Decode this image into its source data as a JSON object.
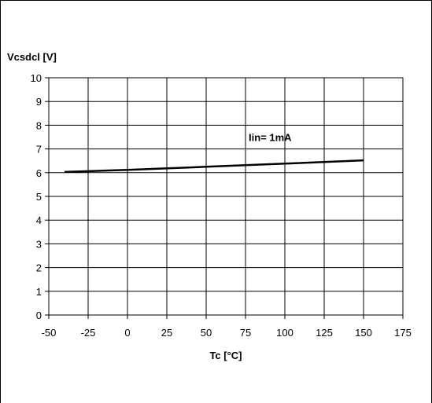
{
  "chart_data": {
    "type": "line",
    "ylabel": "Vcsdcl [V]",
    "xlabel": "Tc [°C]",
    "xlim": [
      -50,
      175
    ],
    "ylim": [
      0,
      10
    ],
    "x_ticks": [
      -50,
      -25,
      0,
      25,
      50,
      75,
      100,
      125,
      150,
      175
    ],
    "y_ticks": [
      0,
      1,
      2,
      3,
      4,
      5,
      6,
      7,
      8,
      9,
      10
    ],
    "grid": true,
    "annotations": [
      {
        "text": "Iin= 1mA",
        "x": 77,
        "y": 7.5
      }
    ],
    "series": [
      {
        "name": "",
        "color": "#000000",
        "x": [
          -40,
          0,
          50,
          100,
          150
        ],
        "y": [
          6.03,
          6.12,
          6.25,
          6.38,
          6.52
        ]
      }
    ]
  }
}
